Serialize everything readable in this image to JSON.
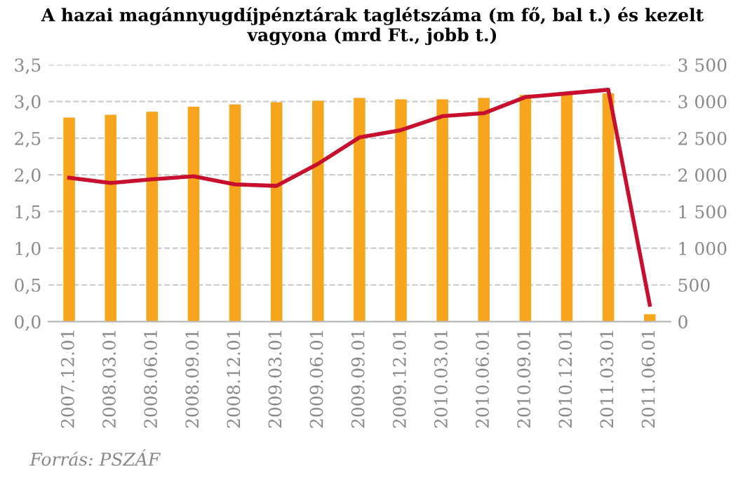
{
  "chart_data": {
    "type": "bar",
    "title": "A hazai magánnyugdíjpénztárak taglétszáma (m fő, bal t.) és kezelt vagyona (mrd Ft., jobb t.)",
    "categories": [
      "2007.12.01",
      "2008.03.01",
      "2008.06.01",
      "2008.09.01",
      "2008.12.01",
      "2009.03.01",
      "2009.06.01",
      "2009.09.01",
      "2009.12.01",
      "2010.03.01",
      "2010.06.01",
      "2010.09.01",
      "2010.12.01",
      "2011.03.01",
      "2011.06.01"
    ],
    "series": [
      {
        "color": "#f7a51c",
        "values": [
          2.78,
          2.82,
          2.86,
          2.93,
          2.96,
          2.99,
          3.01,
          3.05,
          3.03,
          3.03,
          3.05,
          3.09,
          3.1,
          3.11,
          0.1
        ]
      },
      {
        "type": "line",
        "axis": "y2",
        "color": "#c8102e",
        "values": [
          1960,
          1890,
          1940,
          1980,
          1870,
          1850,
          2150,
          2510,
          2610,
          2800,
          2840,
          3060,
          3110,
          3160,
          230
        ]
      }
    ],
    "ylim": [
      0,
      3.5
    ],
    "yticks": [
      {
        "value": 0,
        "label": "0,0"
      },
      {
        "value": 0.5,
        "label": "0,5"
      },
      {
        "value": 1,
        "label": "1,0"
      },
      {
        "value": 1.5,
        "label": "1,5"
      },
      {
        "value": 2,
        "label": "2,0"
      },
      {
        "value": 2.5,
        "label": "2,5"
      },
      {
        "value": 3,
        "label": "3,0"
      },
      {
        "value": 3.5,
        "label": "3,5"
      }
    ],
    "y2lim": [
      0,
      3500
    ],
    "y2ticks": [
      0,
      500,
      {
        "value": 1000,
        "label": "1 000"
      },
      {
        "value": 1500,
        "label": "1 500"
      },
      {
        "value": 2000,
        "label": "2 000"
      },
      {
        "value": 2500,
        "label": "2 500"
      },
      {
        "value": 3000,
        "label": "3 000"
      },
      {
        "value": 3500,
        "label": "3 500"
      }
    ],
    "grid": "y",
    "annotations": [
      "Forrás: PSZÁF"
    ]
  }
}
